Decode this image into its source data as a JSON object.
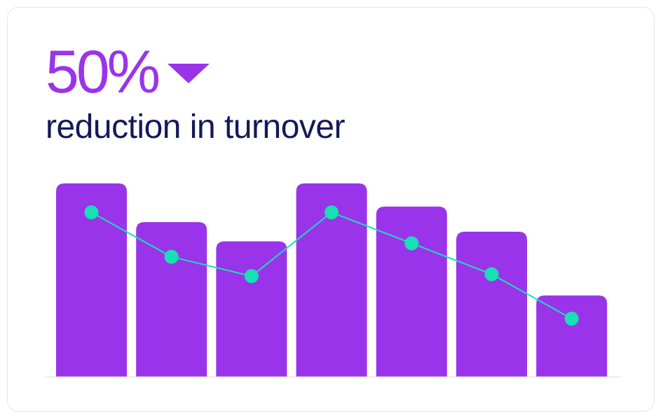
{
  "headline": {
    "value": "50%",
    "caption": "reduction in turnover",
    "trend_icon": "triangle-down-icon"
  },
  "colors": {
    "bar": "#9a34ea",
    "line": "#16e0b4",
    "headline": "#9a34ea",
    "caption": "#14195a",
    "baseline": "#e3e3e3"
  },
  "chart_data": {
    "type": "bar",
    "categories": [
      "",
      "",
      "",
      "",
      "",
      "",
      ""
    ],
    "series": [
      {
        "type": "bar",
        "values": [
          100,
          80,
          70,
          100,
          88,
          75,
          42
        ]
      },
      {
        "type": "line",
        "values": [
          85,
          62,
          52,
          85,
          69,
          53,
          30
        ]
      }
    ],
    "ylim": [
      0,
      100
    ],
    "grid": false,
    "legend": "none"
  }
}
